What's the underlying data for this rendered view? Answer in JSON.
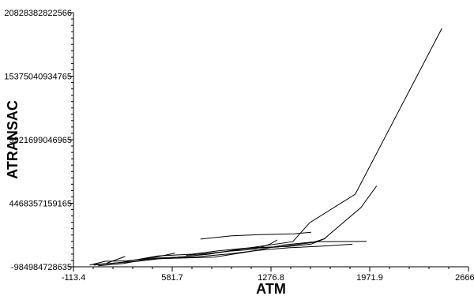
{
  "chart_data": {
    "type": "line",
    "title": "",
    "xlabel": "ATM",
    "ylabel": "ATRANSAC",
    "xlim": [
      -113.4,
      2666.9
    ],
    "ylim": [
      -984984728635,
      20828382822566
    ],
    "x_ticks": [
      -113.4,
      581.7,
      1276.8,
      1971.9,
      2666.9
    ],
    "x_tick_labels": [
      "-113.4",
      "581.7",
      "1276.8",
      "1971.9",
      "2666.9"
    ],
    "y_ticks": [
      -984984728635,
      4468357159165,
      9921699046965,
      15375040934765,
      20828382822566
    ],
    "y_tick_labels": [
      "-984984728635",
      "4468357159165",
      "9921699046965",
      "15375040934765",
      "20828382822566"
    ],
    "grid": false,
    "legend": "none",
    "line_color": "#000000",
    "series": [
      {
        "points": [
          [
            30,
            -840000000000
          ],
          [
            230,
            -600000000000
          ],
          [
            480,
            -60000000000
          ],
          [
            720,
            100000000000
          ],
          [
            900,
            380000000000
          ],
          [
            1130,
            650000000000
          ],
          [
            1430,
            1170000000000
          ],
          [
            1550,
            2800000000000
          ],
          [
            1870,
            5250000000000
          ],
          [
            2480,
            19480000000000
          ]
        ]
      },
      {
        "points": [
          [
            0,
            -840000000000
          ],
          [
            110,
            -510000000000
          ],
          [
            260,
            -480000000000
          ],
          [
            420,
            -270000000000
          ],
          [
            620,
            -150000000000
          ],
          [
            840,
            100000000000
          ],
          [
            1070,
            560000000000
          ],
          [
            1320,
            710000000000
          ],
          [
            1570,
            1100000000000
          ],
          [
            1660,
            1450000000000
          ]
        ]
      },
      {
        "points": [
          [
            20,
            -790000000000
          ],
          [
            160,
            -680000000000
          ],
          [
            330,
            -520000000000
          ],
          [
            500,
            -280000000000
          ],
          [
            680,
            -220000000000
          ],
          [
            880,
            -160000000000
          ],
          [
            1120,
            310000000000
          ],
          [
            1370,
            890000000000
          ],
          [
            1590,
            1170000000000
          ],
          [
            1950,
            1200000000000
          ]
        ]
      },
      {
        "points": [
          [
            60,
            -900000000000
          ],
          [
            240,
            -700000000000
          ],
          [
            400,
            -340000000000
          ],
          [
            560,
            -250000000000
          ],
          [
            760,
            -120000000000
          ],
          [
            980,
            120000000000
          ],
          [
            1190,
            430000000000
          ],
          [
            1400,
            650000000000
          ],
          [
            1630,
            780000000000
          ],
          [
            1850,
            950000000000
          ]
        ]
      },
      {
        "points": [
          [
            680,
            1600000000
          ],
          [
            920,
            250000000000
          ],
          [
            1140,
            660000000000
          ],
          [
            1400,
            760000000000
          ],
          [
            1560,
            960000000000
          ],
          [
            1650,
            1400000000000
          ],
          [
            1910,
            4100000000000
          ],
          [
            2020,
            5950000000000
          ]
        ]
      },
      {
        "points": [
          [
            780,
            1390000000000
          ],
          [
            1000,
            1670000000000
          ],
          [
            1200,
            1780000000000
          ],
          [
            1440,
            1850000000000
          ],
          [
            1560,
            1980000000000
          ]
        ]
      },
      {
        "points": [
          [
            380,
            -280000000000
          ],
          [
            480,
            -120000000000
          ],
          [
            600,
            190000000000
          ]
        ]
      },
      {
        "points": [
          [
            120,
            -680000000000
          ],
          [
            250,
            -100000000000
          ]
        ]
      },
      {
        "points": [
          [
            780,
            100000000000
          ],
          [
            980,
            350000000000
          ],
          [
            1160,
            520000000000
          ],
          [
            1270,
            960000000000
          ],
          [
            1320,
            1320000000000
          ]
        ]
      }
    ]
  }
}
